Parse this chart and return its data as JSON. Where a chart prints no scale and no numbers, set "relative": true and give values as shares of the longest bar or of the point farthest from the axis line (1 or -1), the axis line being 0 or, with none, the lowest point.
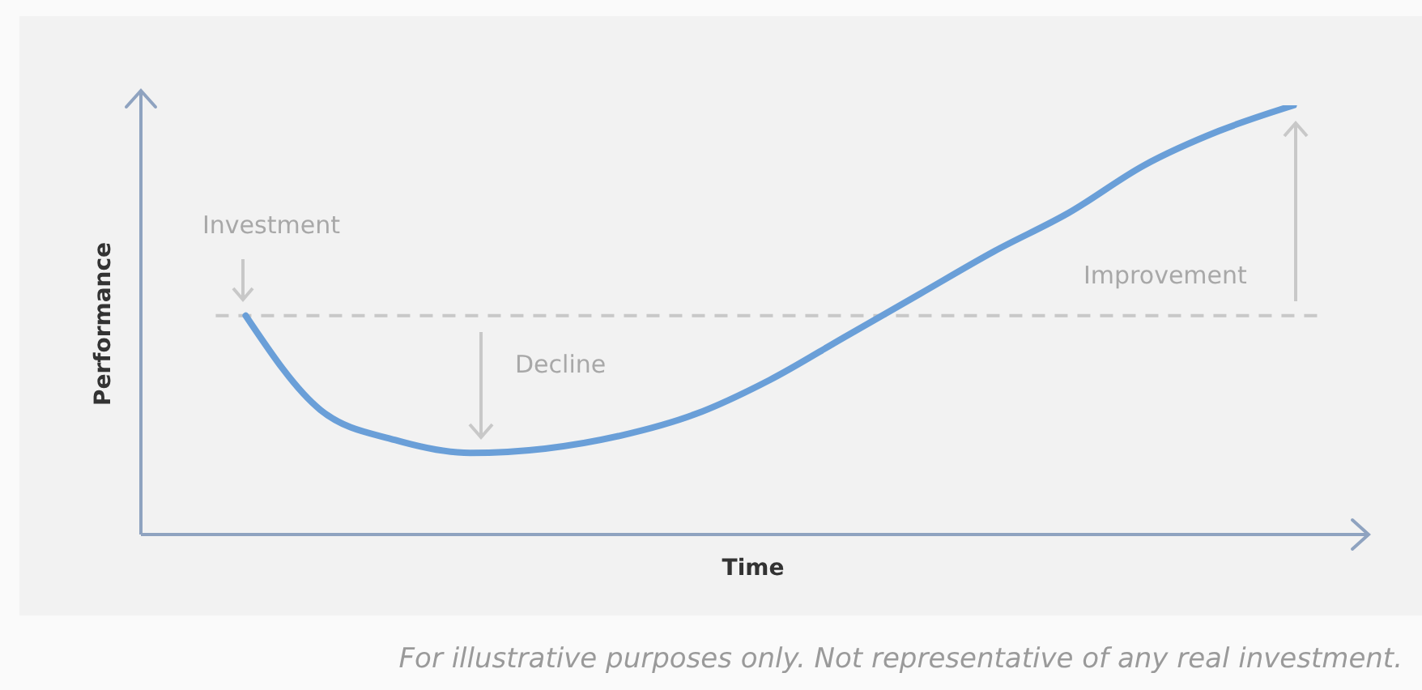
{
  "chart_data": {
    "type": "line",
    "relative": true,
    "xlabel": "Time",
    "ylabel": "Performance",
    "categories": [
      null,
      null,
      null,
      null,
      null,
      null,
      null,
      null,
      null,
      null,
      null,
      null,
      null,
      null,
      null
    ],
    "series": [
      {
        "color": "#6a9fd8",
        "values": [
          0.51,
          0.29,
          0.22,
          0.19,
          0.2,
          0.23,
          0.28,
          0.36,
          0.46,
          0.56,
          0.66,
          0.75,
          0.86,
          0.94,
          1
        ]
      }
    ],
    "marker": "none",
    "ref_lines": [
      {
        "axis": "y",
        "value": 0.51,
        "color": "#c8c8c8",
        "line_style": "dashed"
      }
    ],
    "annotations": [
      "Investment",
      "Decline",
      "Improvement",
      "For illustrative purposes only. Not representative of any real investment."
    ]
  }
}
